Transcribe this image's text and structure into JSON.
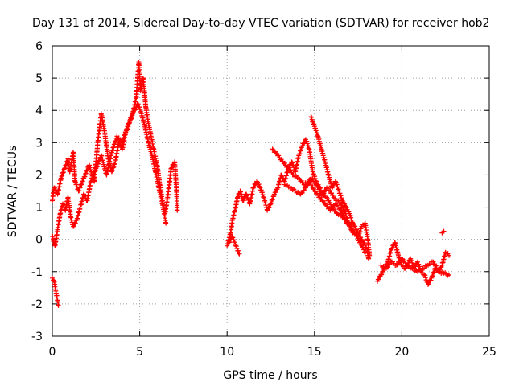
{
  "chart_data": {
    "type": "scatter",
    "title": "Day 131 of 2014, Sidereal Day-to-day VTEC variation (SDTVAR) for receiver hob2",
    "xlabel": "GPS time / hours",
    "ylabel": "SDTVAR / TECUs",
    "xlim": [
      0,
      25
    ],
    "ylim": [
      -3,
      6
    ],
    "x_ticks": [
      "0",
      "5",
      "10",
      "15",
      "20",
      "25"
    ],
    "y_ticks": [
      "-3",
      "-2",
      "-1",
      "0",
      "1",
      "2",
      "3",
      "4",
      "5",
      "6"
    ],
    "grid": true,
    "marker": "+",
    "series": [
      {
        "name": "SDTVAR",
        "color": "#ff0000",
        "segments": [
          [
            [
              0.0,
              1.2
            ],
            [
              0.1,
              1.6
            ],
            [
              0.3,
              1.4
            ],
            [
              0.5,
              1.9
            ],
            [
              0.7,
              2.2
            ],
            [
              0.9,
              2.5
            ],
            [
              1.0,
              2.1
            ],
            [
              1.2,
              2.7
            ],
            [
              1.3,
              1.8
            ],
            [
              1.5,
              1.5
            ],
            [
              1.8,
              1.9
            ],
            [
              2.1,
              2.3
            ],
            [
              2.4,
              1.8
            ],
            [
              2.6,
              3.0
            ],
            [
              2.8,
              3.9
            ],
            [
              3.0,
              3.3
            ],
            [
              3.2,
              2.5
            ],
            [
              3.4,
              2.1
            ],
            [
              3.6,
              2.4
            ],
            [
              3.8,
              3.0
            ],
            [
              4.0,
              2.8
            ],
            [
              4.2,
              3.3
            ],
            [
              4.4,
              3.6
            ],
            [
              4.6,
              3.9
            ],
            [
              4.8,
              4.4
            ],
            [
              4.95,
              5.5
            ],
            [
              5.05,
              4.6
            ],
            [
              5.2,
              5.0
            ],
            [
              5.35,
              4.1
            ],
            [
              5.5,
              3.6
            ],
            [
              5.65,
              3.2
            ],
            [
              5.8,
              2.8
            ],
            [
              6.0,
              2.3
            ],
            [
              6.15,
              1.7
            ],
            [
              6.3,
              1.2
            ],
            [
              6.45,
              0.8
            ],
            [
              6.6,
              1.3
            ],
            [
              6.8,
              2.2
            ],
            [
              7.0,
              2.4
            ],
            [
              7.1,
              1.6
            ],
            [
              7.15,
              0.9
            ]
          ],
          [
            [
              0.0,
              0.1
            ],
            [
              0.15,
              -0.2
            ],
            [
              0.3,
              0.3
            ],
            [
              0.45,
              0.8
            ],
            [
              0.6,
              1.1
            ],
            [
              0.75,
              0.9
            ],
            [
              0.9,
              1.3
            ],
            [
              1.05,
              0.7
            ],
            [
              1.2,
              0.4
            ],
            [
              1.4,
              0.6
            ],
            [
              1.6,
              1.0
            ],
            [
              1.8,
              1.4
            ],
            [
              2.0,
              1.2
            ],
            [
              2.2,
              1.8
            ],
            [
              2.5,
              2.2
            ],
            [
              2.8,
              2.6
            ],
            [
              3.1,
              2.0
            ],
            [
              3.4,
              2.7
            ],
            [
              3.7,
              3.2
            ],
            [
              4.0,
              3.0
            ],
            [
              4.3,
              3.5
            ],
            [
              4.6,
              3.9
            ],
            [
              4.9,
              4.2
            ],
            [
              5.1,
              3.9
            ],
            [
              5.3,
              3.5
            ],
            [
              5.5,
              3.0
            ],
            [
              5.7,
              2.6
            ],
            [
              5.9,
              2.1
            ],
            [
              6.1,
              1.6
            ],
            [
              6.3,
              1.1
            ],
            [
              6.5,
              0.5
            ]
          ],
          [
            [
              0.0,
              -1.2
            ],
            [
              0.1,
              -1.3
            ],
            [
              0.2,
              -1.6
            ],
            [
              0.3,
              -1.9
            ],
            [
              0.35,
              -2.05
            ]
          ],
          [
            [
              10.0,
              -0.2
            ],
            [
              10.2,
              0.2
            ],
            [
              10.3,
              0.6
            ],
            [
              10.45,
              0.9
            ],
            [
              10.6,
              1.3
            ],
            [
              10.75,
              1.5
            ],
            [
              10.9,
              1.2
            ],
            [
              11.1,
              1.4
            ],
            [
              11.3,
              1.1
            ],
            [
              11.5,
              1.6
            ],
            [
              11.7,
              1.8
            ],
            [
              11.9,
              1.6
            ],
            [
              12.1,
              1.3
            ],
            [
              12.3,
              0.9
            ],
            [
              12.5,
              1.1
            ],
            [
              12.7,
              1.4
            ],
            [
              12.9,
              1.6
            ],
            [
              13.1,
              2.0
            ],
            [
              13.3,
              1.8
            ],
            [
              13.5,
              2.2
            ],
            [
              13.7,
              2.4
            ],
            [
              13.9,
              2.1
            ],
            [
              14.1,
              2.6
            ],
            [
              14.3,
              2.9
            ],
            [
              14.5,
              3.1
            ],
            [
              14.7,
              2.8
            ],
            [
              14.9,
              2.1
            ],
            [
              15.1,
              1.8
            ],
            [
              15.3,
              1.6
            ],
            [
              15.5,
              1.4
            ],
            [
              15.7,
              1.6
            ],
            [
              15.9,
              1.5
            ],
            [
              16.1,
              1.3
            ],
            [
              16.3,
              1.2
            ],
            [
              16.5,
              1.1
            ],
            [
              16.7,
              0.9
            ],
            [
              16.9,
              0.6
            ],
            [
              17.1,
              0.4
            ],
            [
              17.3,
              0.2
            ],
            [
              17.5,
              0.1
            ],
            [
              17.7,
              0.4
            ],
            [
              17.9,
              0.5
            ],
            [
              18.05,
              0.0
            ],
            [
              18.15,
              -0.5
            ]
          ],
          [
            [
              10.1,
              -0.1
            ],
            [
              10.3,
              0.1
            ],
            [
              10.5,
              -0.2
            ],
            [
              10.7,
              -0.45
            ]
          ],
          [
            [
              12.6,
              2.8
            ],
            [
              12.9,
              2.6
            ],
            [
              13.2,
              2.4
            ],
            [
              13.5,
              2.2
            ],
            [
              13.8,
              2.0
            ],
            [
              14.1,
              1.9
            ],
            [
              14.4,
              1.7
            ],
            [
              14.7,
              1.8
            ],
            [
              15.0,
              1.5
            ],
            [
              15.3,
              1.3
            ],
            [
              15.6,
              1.1
            ],
            [
              15.9,
              0.9
            ],
            [
              16.2,
              1.1
            ],
            [
              16.5,
              0.9
            ],
            [
              16.8,
              0.6
            ],
            [
              17.1,
              0.3
            ],
            [
              17.4,
              0.1
            ],
            [
              17.7,
              -0.2
            ],
            [
              17.9,
              -0.4
            ]
          ],
          [
            [
              14.8,
              3.8
            ],
            [
              15.0,
              3.5
            ],
            [
              15.2,
              3.2
            ],
            [
              15.4,
              2.8
            ],
            [
              15.6,
              2.4
            ],
            [
              15.8,
              2.0
            ],
            [
              16.0,
              1.6
            ],
            [
              16.2,
              1.8
            ],
            [
              16.4,
              1.5
            ],
            [
              16.6,
              1.2
            ],
            [
              16.8,
              1.0
            ],
            [
              17.0,
              0.8
            ],
            [
              17.2,
              0.5
            ],
            [
              17.4,
              0.3
            ],
            [
              17.6,
              0.1
            ],
            [
              17.8,
              -0.1
            ],
            [
              18.0,
              -0.3
            ],
            [
              18.1,
              -0.6
            ]
          ],
          [
            [
              13.3,
              1.7
            ],
            [
              13.6,
              1.6
            ],
            [
              13.9,
              1.5
            ],
            [
              14.2,
              1.4
            ],
            [
              14.5,
              1.6
            ],
            [
              14.8,
              1.9
            ],
            [
              15.1,
              1.7
            ],
            [
              15.4,
              1.4
            ],
            [
              15.7,
              1.3
            ],
            [
              16.0,
              1.0
            ],
            [
              16.3,
              0.8
            ],
            [
              16.6,
              0.7
            ],
            [
              16.9,
              0.5
            ]
          ],
          [
            [
              18.6,
              -1.3
            ],
            [
              18.8,
              -1.1
            ],
            [
              19.0,
              -0.9
            ],
            [
              19.2,
              -0.7
            ],
            [
              19.4,
              -0.3
            ],
            [
              19.6,
              -0.1
            ],
            [
              19.8,
              -0.5
            ],
            [
              20.0,
              -0.8
            ],
            [
              20.2,
              -0.9
            ],
            [
              20.5,
              -0.6
            ],
            [
              20.7,
              -0.9
            ],
            [
              20.9,
              -0.7
            ],
            [
              21.1,
              -1.0
            ],
            [
              21.3,
              -1.1
            ],
            [
              21.5,
              -1.4
            ],
            [
              21.7,
              -1.2
            ],
            [
              21.9,
              -0.9
            ],
            [
              22.1,
              -1.0
            ],
            [
              22.3,
              -0.8
            ],
            [
              22.5,
              -0.4
            ],
            [
              22.7,
              -0.5
            ]
          ],
          [
            [
              18.8,
              -0.8
            ],
            [
              19.1,
              -0.9
            ],
            [
              19.4,
              -0.7
            ],
            [
              19.7,
              -0.8
            ],
            [
              20.0,
              -0.6
            ],
            [
              20.3,
              -0.8
            ],
            [
              20.6,
              -0.9
            ],
            [
              20.9,
              -1.0
            ],
            [
              21.2,
              -0.9
            ],
            [
              21.5,
              -0.8
            ],
            [
              21.8,
              -0.7
            ],
            [
              22.1,
              -1.0
            ],
            [
              22.4,
              -1.05
            ],
            [
              22.7,
              -1.1
            ]
          ],
          [
            [
              22.3,
              0.2
            ],
            [
              22.4,
              0.25
            ]
          ]
        ]
      }
    ]
  }
}
